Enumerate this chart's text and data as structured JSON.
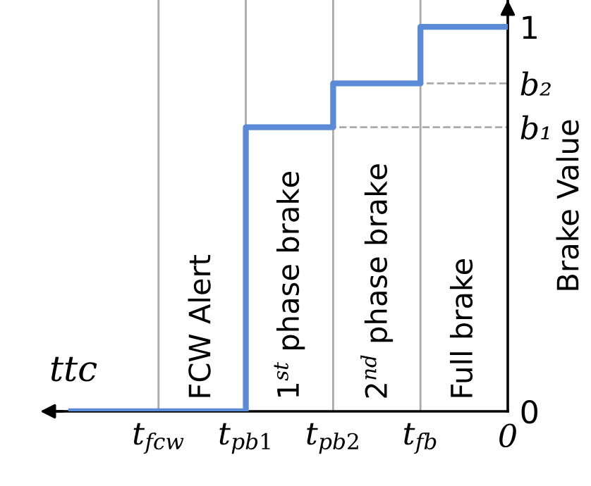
{
  "chart_data": {
    "type": "step",
    "xlabel": "ttc",
    "ylabel": "Brake Value",
    "categories": [
      null,
      "t$_{fcw}$",
      "t$_{pb1}$",
      "t$_{pb2}$",
      "t$_{fb}$",
      "0"
    ],
    "series": [
      {
        "color": "#5b8bd6",
        "values": [
          0,
          0,
          0.739,
          0.853,
          1,
          1
        ]
      }
    ],
    "ylim": [
      0,
      1.07
    ],
    "yticks": [
      0,
      {
        "value": 0.739,
        "label": "b₁"
      },
      {
        "value": 0.853,
        "label": "b₂"
      },
      1
    ],
    "ref_lines": [
      {
        "axis": "y",
        "value": 0.739,
        "color": "#aaaaaa",
        "line_style": "dashed"
      },
      {
        "axis": "y",
        "value": 0.853,
        "color": "#aaaaaa",
        "line_style": "dashed"
      }
    ],
    "annotations": [
      "FCW Alert",
      "1$^{st}$ phase brake",
      "2$^{nd}$ phase brake",
      "Full brake"
    ],
    "grid": "x",
    "line_style": "solid",
    "marker": "none"
  }
}
